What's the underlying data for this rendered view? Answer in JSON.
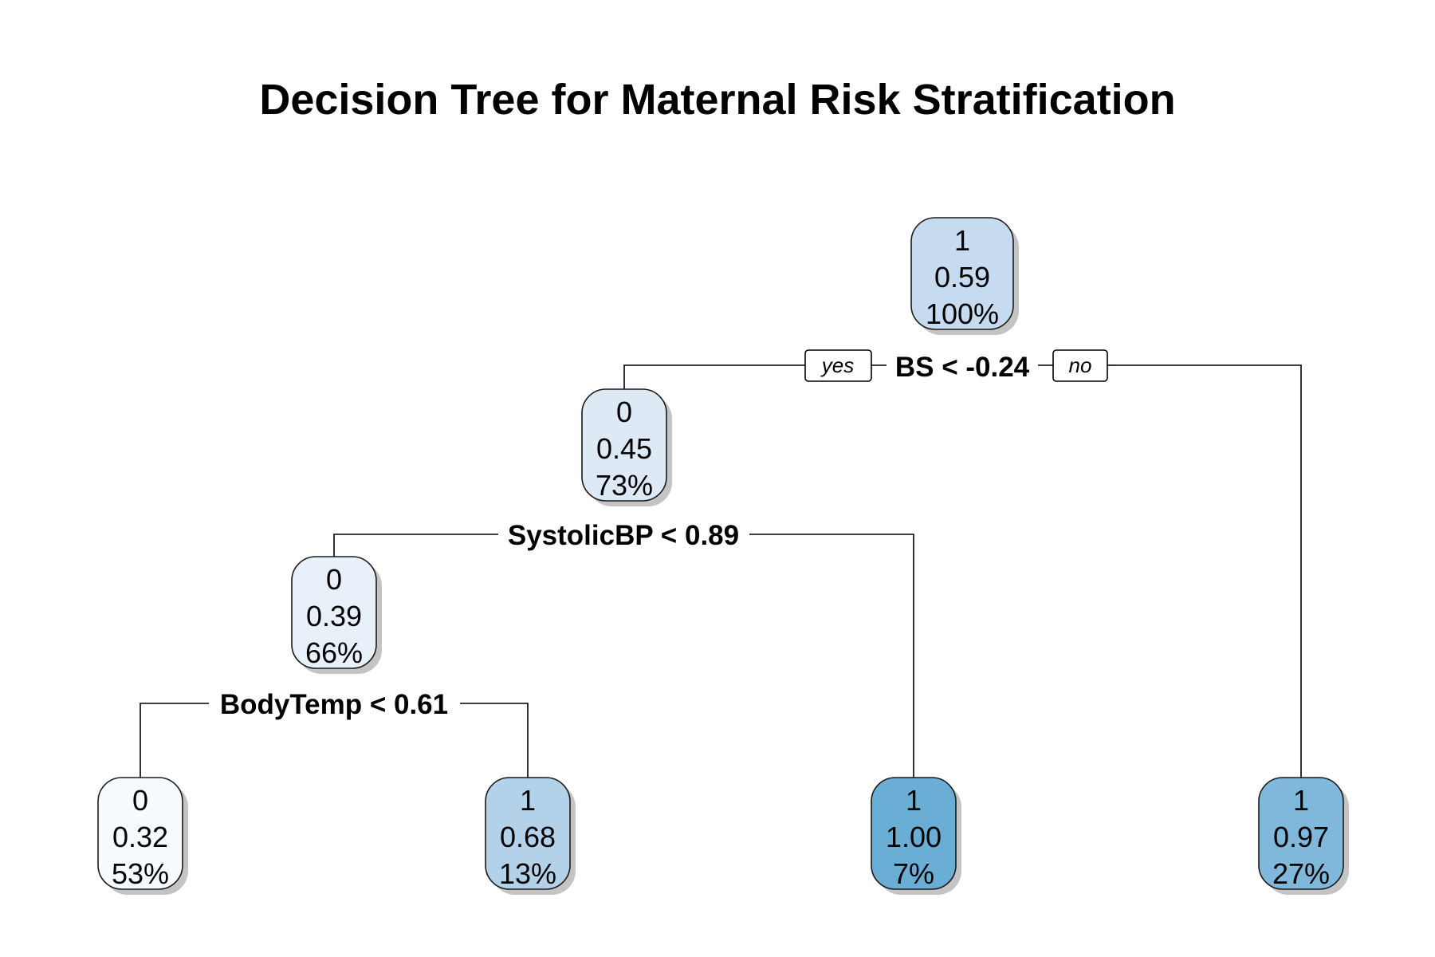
{
  "title": "Decision Tree for Maternal Risk Stratification",
  "nodes": [
    {
      "id": "root",
      "cls": "1",
      "prob": "0.59",
      "pct": "100%",
      "color": "#c6dbef"
    },
    {
      "id": "n2",
      "cls": "0",
      "prob": "0.45",
      "pct": "73%",
      "color": "#dde9f5"
    },
    {
      "id": "n4",
      "cls": "0",
      "prob": "0.39",
      "pct": "66%",
      "color": "#e8f0f9"
    },
    {
      "id": "leaf8",
      "cls": "0",
      "prob": "0.32",
      "pct": "53%",
      "color": "#f7fbff"
    },
    {
      "id": "leaf9",
      "cls": "1",
      "prob": "0.68",
      "pct": "13%",
      "color": "#b3d1e8"
    },
    {
      "id": "leaf5",
      "cls": "1",
      "prob": "1.00",
      "pct": "7%",
      "color": "#6aaed6"
    },
    {
      "id": "leaf3",
      "cls": "1",
      "prob": "0.97",
      "pct": "27%",
      "color": "#7fb8da"
    }
  ],
  "splits": [
    {
      "id": "split-bs",
      "label": "BS < -0.24"
    },
    {
      "id": "split-systolic",
      "label": "SystolicBP < 0.89"
    },
    {
      "id": "split-bodytemp",
      "label": "BodyTemp < 0.61"
    }
  ],
  "edge_labels": {
    "yes": "yes",
    "no": "no"
  }
}
